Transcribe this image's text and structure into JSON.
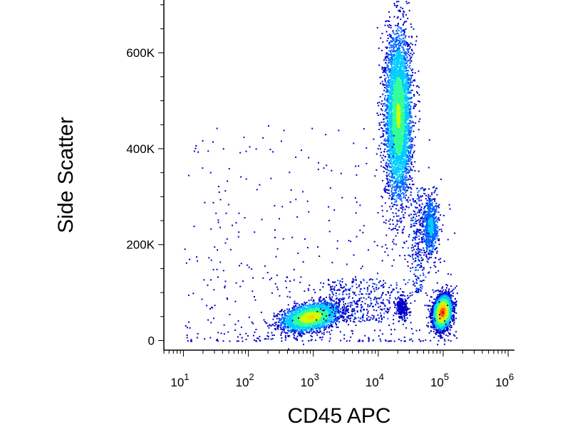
{
  "chart_data": {
    "type": "scatter",
    "style": "density pseudocolor (flow cytometry dot plot)",
    "xlabel": "CD45 APC",
    "ylabel": "Side Scatter",
    "x_scale": "log",
    "xlim": [
      5,
      1250000
    ],
    "ylim": [
      -20000,
      710000
    ],
    "x_ticks": [
      {
        "base": "10",
        "exp": "1"
      },
      {
        "base": "10",
        "exp": "2"
      },
      {
        "base": "10",
        "exp": "3"
      },
      {
        "base": "10",
        "exp": "4"
      },
      {
        "base": "10",
        "exp": "5"
      },
      {
        "base": "10",
        "exp": "6"
      }
    ],
    "y_ticks": [
      {
        "value": 0,
        "label": "0"
      },
      {
        "value": 200000,
        "label": "200K"
      },
      {
        "value": 400000,
        "label": "400K"
      },
      {
        "value": 600000,
        "label": "600K"
      }
    ],
    "populations": [
      {
        "log_cd45_center": 2.95,
        "ssc_center": 50000,
        "log_spread": 0.22,
        "ssc_spread": 14000,
        "tilt": 0.35,
        "count": 2600,
        "peak": "yellow"
      },
      {
        "log_cd45_center": 4.3,
        "ssc_center": 470000,
        "log_spread": 0.1,
        "ssc_spread": 85000,
        "tilt": 0.0,
        "count": 4500,
        "peak": "yellow-green"
      },
      {
        "log_cd45_center": 4.8,
        "ssc_center": 240000,
        "log_spread": 0.06,
        "ssc_spread": 30000,
        "tilt": 0.0,
        "count": 700,
        "peak": "cyan"
      },
      {
        "log_cd45_center": 4.98,
        "ssc_center": 60000,
        "log_spread": 0.07,
        "ssc_spread": 17000,
        "tilt": 0.2,
        "count": 3200,
        "peak": "red"
      },
      {
        "log_cd45_center": 4.35,
        "ssc_center": 70000,
        "log_spread": 0.05,
        "ssc_spread": 12000,
        "tilt": 0.0,
        "count": 260,
        "peak": "blue"
      }
    ],
    "colormap": [
      "#0000c8",
      "#0066ff",
      "#00ccff",
      "#33ff99",
      "#ccff00",
      "#ffcc00",
      "#ff5500",
      "#e00000"
    ]
  }
}
